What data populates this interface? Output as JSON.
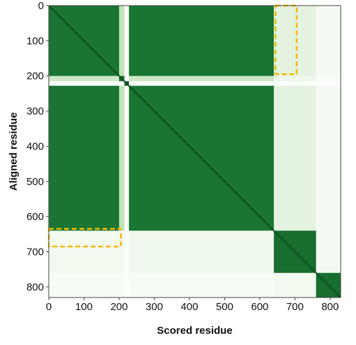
{
  "chart_data": {
    "type": "heatmap",
    "title": "",
    "xlabel": "Scored residue",
    "ylabel": "Aligned residue",
    "xlim": [
      0,
      830
    ],
    "ylim": [
      0,
      830
    ],
    "y_inverted": true,
    "x_ticks": [
      0,
      100,
      200,
      300,
      400,
      500,
      600,
      700,
      800
    ],
    "y_ticks": [
      0,
      100,
      200,
      300,
      400,
      500,
      600,
      700,
      800
    ],
    "colormap": [
      "#ffffff",
      "#e4f3df",
      "#b4dcac",
      "#5fb065",
      "#1e7f37",
      "#0f5c26"
    ],
    "value_range": [
      0,
      1
    ],
    "domains": [
      {
        "start": 0,
        "end": 200,
        "value": 0.86
      },
      {
        "start": 200,
        "end": 215,
        "value": 0.32
      },
      {
        "start": 215,
        "end": 228,
        "value": 0.04
      },
      {
        "start": 228,
        "end": 640,
        "value": 0.86
      },
      {
        "start": 640,
        "end": 760,
        "value": 0.9
      },
      {
        "start": 760,
        "end": 830,
        "value": 0.06
      }
    ],
    "block_values": [
      [
        0.86,
        0.35,
        0.05,
        0.86,
        0.2,
        0.08
      ],
      [
        0.3,
        0.9,
        0.05,
        0.3,
        0.12,
        0.05
      ],
      [
        0.04,
        0.04,
        0.95,
        0.04,
        0.03,
        0.02
      ],
      [
        0.86,
        0.35,
        0.05,
        0.86,
        0.2,
        0.08
      ],
      [
        0.1,
        0.1,
        0.03,
        0.12,
        0.9,
        0.08
      ],
      [
        0.05,
        0.05,
        0.02,
        0.05,
        0.1,
        0.9
      ]
    ],
    "highlight_boxes": [
      {
        "x": [
          645,
          705
        ],
        "y": [
          0,
          195
        ],
        "color": "#f5b800"
      },
      {
        "x": [
          0,
          205
        ],
        "y": [
          635,
          685
        ],
        "color": "#f5b800"
      }
    ]
  }
}
